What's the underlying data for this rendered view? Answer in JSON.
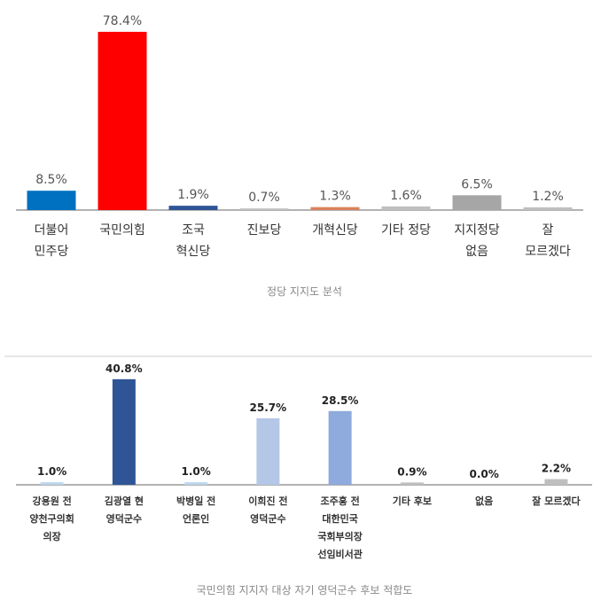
{
  "chart_data": [
    {
      "type": "bar",
      "categories": [
        "더불어\n민주당",
        "국민의힘",
        "조국\n혁신당",
        "진보당",
        "개혁신당",
        "기타 정당",
        "지지정당\n없음",
        "잘\n모르겠다"
      ],
      "values": [
        8.5,
        78.4,
        1.9,
        0.7,
        1.3,
        1.6,
        6.5,
        1.2
      ],
      "value_labels": [
        "8.5%",
        "78.4%",
        "1.9%",
        "0.7%",
        "1.3%",
        "1.6%",
        "6.5%",
        "1.2%"
      ],
      "colors": [
        "#0070c0",
        "#ff0000",
        "#2f5597",
        "#bfbfbf",
        "#d9825b",
        "#bfbfbf",
        "#a6a6a6",
        "#bfbfbf"
      ],
      "caption": "정당 지지도 분석"
    },
    {
      "type": "bar",
      "categories": [
        "강용원 전\n양천구의회\n의장",
        "김광열 현\n영덕군수",
        "박병일 전\n언론인",
        "이희진 전\n영덕군수",
        "조주홍 전\n대한민국\n국회부의장\n선임비서관",
        "기타 후보",
        "없음",
        "잘 모르겠다"
      ],
      "values": [
        1.0,
        40.8,
        1.0,
        25.7,
        28.5,
        0.9,
        0.0,
        2.2
      ],
      "value_labels": [
        "1.0%",
        "40.8%",
        "1.0%",
        "25.7%",
        "28.5%",
        "0.9%",
        "0.0%",
        "2.2%"
      ],
      "colors": [
        "#bdd7ee",
        "#2f5597",
        "#bdd7ee",
        "#b4c7e7",
        "#8faadc",
        "#bfbfbf",
        "#bfbfbf",
        "#bfbfbf"
      ],
      "caption": "국민의힘 지지자 대상 자기 영덕군수 후보 적합도"
    }
  ]
}
